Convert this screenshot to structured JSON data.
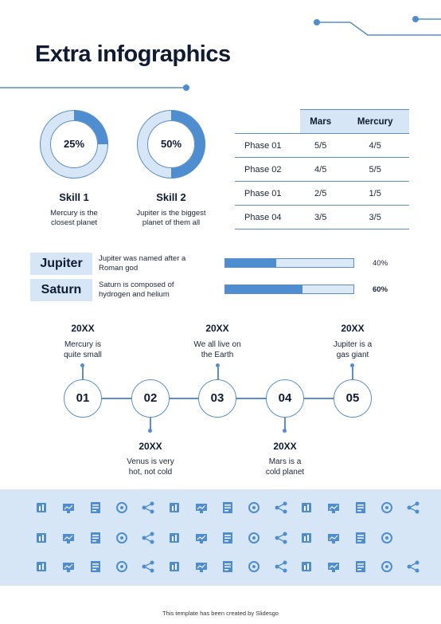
{
  "title": "Extra infographics",
  "skills": [
    {
      "percent_label": "25%",
      "percent": 25,
      "name": "Skill 1",
      "desc_line1": "Mercury is the",
      "desc_line2": "closest planet"
    },
    {
      "percent_label": "50%",
      "percent": 50,
      "name": "Skill 2",
      "desc_line1": "Jupiter is the biggest",
      "desc_line2": "planet of them all"
    }
  ],
  "table": {
    "headers": [
      "",
      "Mars",
      "Mercury"
    ],
    "rows": [
      [
        "Phase 01",
        "5/5",
        "4/5"
      ],
      [
        "Phase 02",
        "4/5",
        "5/5"
      ],
      [
        "Phase 01",
        "2/5",
        "1/5"
      ],
      [
        "Phase 04",
        "3/5",
        "3/5"
      ]
    ]
  },
  "progress": [
    {
      "name": "Jupiter",
      "desc_line1": "Jupiter was named after a",
      "desc_line2": "Roman god",
      "percent_label": "40%",
      "percent": 40
    },
    {
      "name": "Saturn",
      "desc_line1": "Saturn is composed of",
      "desc_line2": "hydrogen and helium",
      "percent_label": "60%",
      "percent": 60
    }
  ],
  "timeline": [
    {
      "num": "01",
      "year": "20XX",
      "line1": "Mercury is",
      "line2": "quite small",
      "pos": "top"
    },
    {
      "num": "02",
      "year": "20XX",
      "line1": "Venus is very",
      "line2": "hot, not cold",
      "pos": "bottom"
    },
    {
      "num": "03",
      "year": "20XX",
      "line1": "We all live on",
      "line2": "the Earth",
      "pos": "top"
    },
    {
      "num": "04",
      "year": "20XX",
      "line1": "Mars is a",
      "line2": "cold planet",
      "pos": "bottom"
    },
    {
      "num": "05",
      "year": "20XX",
      "line1": "Jupiter is a",
      "line2": "gas giant",
      "pos": "top"
    }
  ],
  "icons": [
    "report-icon",
    "bar-chart-icon",
    "network-icon",
    "mobile-chart-icon",
    "stairs-chart-icon",
    "scatter-chart-icon",
    "people-icon",
    "server-icon",
    "building-chart-icon",
    "hub-icon",
    "globe-icon",
    "database-icon",
    "magnify-chart-icon",
    "line-chart-icon",
    "documents-icon",
    "org-icon",
    "warning-window-icon",
    "gear-icon",
    "team-icon",
    "podium-icon",
    "flow-icon",
    "cloud-icon",
    "cart-icon",
    "columns-icon",
    "clock-window-icon",
    "id-card-icon",
    "workflow-icon",
    "list-server-icon",
    "dollar-circle-icon",
    "blank",
    "share-icon",
    "hierarchy-icon",
    "snowflake-icon",
    "monitor-icon",
    "presenter-icon",
    "delivery-icon",
    "archive-icon",
    "clipboard-icon",
    "grid-icon",
    "mail-chart-icon",
    "candlestick-icon",
    "gantt-icon",
    "pin-chart-icon",
    "pyramid-icon",
    "molecule-icon"
  ],
  "credit": "This template has been created by Slidesgo",
  "colors": {
    "accent": "#4e8dd0",
    "light": "#d6e6f6",
    "dark": "#0f1a33"
  }
}
